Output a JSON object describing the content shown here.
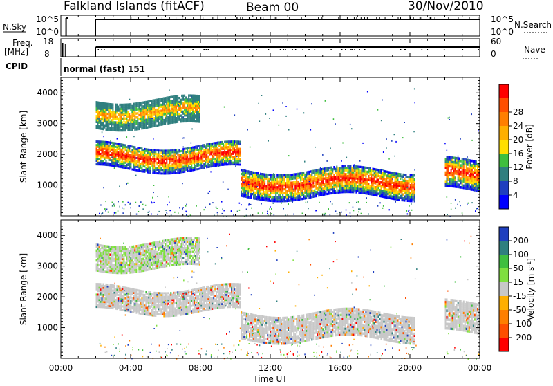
{
  "header": {
    "station": "Falkland Islands (fitACF)",
    "beam": "Beam 00",
    "date": "30/Nov/2010"
  },
  "top_panels": {
    "nsky": {
      "label": "N.Sky",
      "ticks": [
        "10^5",
        "10^0"
      ]
    },
    "nsearch": {
      "label": "N.Search",
      "ticks": [
        "10^5",
        "10^0"
      ]
    },
    "freq": {
      "label_line1": "Freq.",
      "label_line2": "[MHz]",
      "ticks": [
        "18",
        "8"
      ]
    },
    "nave": {
      "label": "Nave",
      "ticks": [
        "60",
        "0"
      ]
    },
    "cpid": {
      "label": "CPID",
      "value": "normal (fast) 151"
    }
  },
  "chart_data": [
    {
      "type": "heatmap",
      "name_key": "power",
      "ylabel": "Slant Range [km]",
      "yticks": [
        1000,
        2000,
        3000,
        4000
      ],
      "ylim": [
        0,
        4500
      ],
      "xlim_hours": [
        0,
        24
      ],
      "colorbar_label": "Power [dB]",
      "colorbar_ticks": [
        4,
        8,
        12,
        16,
        20,
        24,
        28
      ],
      "colors": [
        "#0000ff",
        "#1f3fbf",
        "#2f7f7f",
        "#3fbf3f",
        "#ffdf00",
        "#ffaf00",
        "#ff7f00",
        "#ff4f00",
        "#ff0000"
      ],
      "bands": [
        {
          "x0": 2.0,
          "x1": 10.3,
          "y0": 1500,
          "y1": 2300
        },
        {
          "x0": 10.3,
          "x1": 20.3,
          "y0": 600,
          "y1": 1500
        },
        {
          "x0": 2.0,
          "x1": 8.0,
          "y0": 2900,
          "y1": 3800
        },
        {
          "x0": 22.0,
          "x1": 24.0,
          "y0": 800,
          "y1": 1800
        }
      ]
    },
    {
      "type": "heatmap",
      "name_key": "velocity",
      "ylabel": "Slant Range [km]",
      "yticks": [
        1000,
        2000,
        3000,
        4000
      ],
      "ylim": [
        0,
        4500
      ],
      "xlim_hours": [
        0,
        24
      ],
      "colorbar_label": "Velocity [m s",
      "colorbar_label_sup": "-1",
      "colorbar_label_end": "]",
      "colorbar_ticks": [
        "200",
        "100",
        "50",
        "15",
        "-15",
        "-50",
        "-100",
        "-200"
      ],
      "colors": [
        "#1f3fbf",
        "#2f7f7f",
        "#3fbf3f",
        "#7fdf3f",
        "#c8c8c8",
        "#ffaf00",
        "#ff7f00",
        "#ff4f00",
        "#ff0000"
      ],
      "bands": [
        {
          "x0": 2.0,
          "x1": 10.3,
          "y0": 1500,
          "y1": 2300
        },
        {
          "x0": 10.3,
          "x1": 20.3,
          "y0": 600,
          "y1": 1500
        },
        {
          "x0": 2.0,
          "x1": 8.0,
          "y0": 2900,
          "y1": 3800
        },
        {
          "x0": 22.0,
          "x1": 24.0,
          "y0": 800,
          "y1": 1800
        }
      ]
    }
  ],
  "xaxis": {
    "label": "Time UT",
    "ticks": [
      "00:00",
      "04:00",
      "08:00",
      "12:00",
      "16:00",
      "20:00",
      "00:00"
    ]
  }
}
